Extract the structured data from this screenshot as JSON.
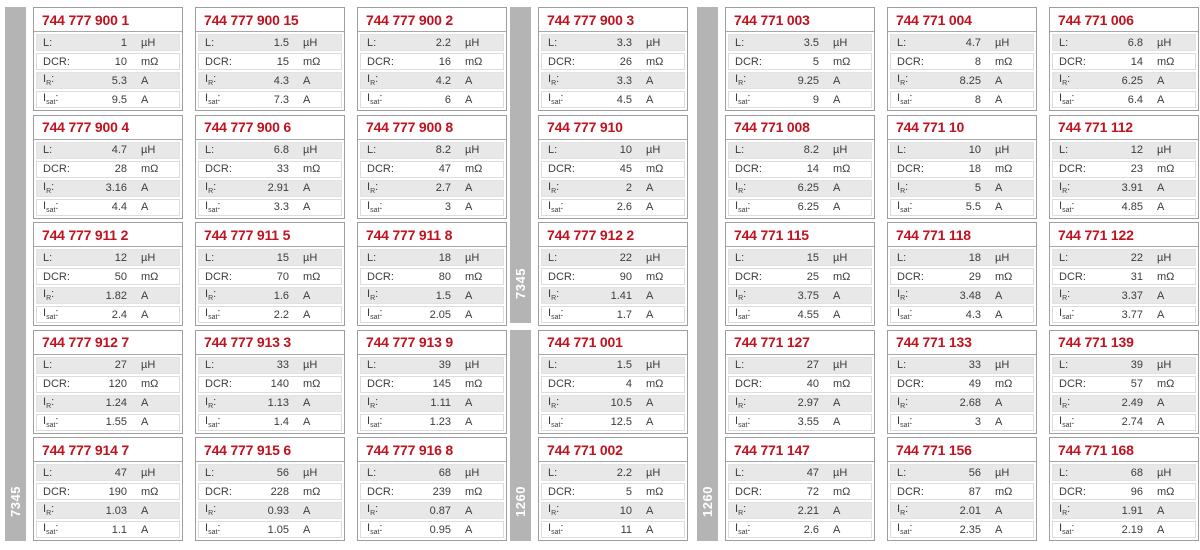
{
  "labels": {
    "l": "L:",
    "dcr": "DCR:",
    "i_base": "I",
    "r_sub": "R",
    "sat_sub": "sat",
    "colon": ":"
  },
  "units": {
    "l": "µH",
    "dcr": "mΩ",
    "ir": "A",
    "isat": "A"
  },
  "colors": {
    "accent_red": "#c1121f",
    "sidebar_gray": "#b4b4b4",
    "row_gray": "#e8e8e8",
    "border_gray": "#9e9e9e"
  },
  "groups": [
    {
      "name": "left-block",
      "columns": 3,
      "sidebar": [
        {
          "label": "7345",
          "rows": 5
        }
      ],
      "cards": [
        {
          "title": "744 777 900 1",
          "l": "1",
          "dcr": "10",
          "ir": "5.3",
          "isat": "9.5"
        },
        {
          "title": "744 777 900 15",
          "l": "1.5",
          "dcr": "15",
          "ir": "4.3",
          "isat": "7.3"
        },
        {
          "title": "744 777 900 2",
          "l": "2.2",
          "dcr": "16",
          "ir": "4.2",
          "isat": "6"
        },
        {
          "title": "744 777 900 4",
          "l": "4.7",
          "dcr": "28",
          "ir": "3.16",
          "isat": "4.4"
        },
        {
          "title": "744 777 900 6",
          "l": "6.8",
          "dcr": "33",
          "ir": "2.91",
          "isat": "3.3"
        },
        {
          "title": "744 777 900 8",
          "l": "8.2",
          "dcr": "47",
          "ir": "2.7",
          "isat": "3"
        },
        {
          "title": "744 777 911 2",
          "l": "12",
          "dcr": "50",
          "ir": "1.82",
          "isat": "2.4"
        },
        {
          "title": "744 777 911 5",
          "l": "15",
          "dcr": "70",
          "ir": "1.6",
          "isat": "2.2"
        },
        {
          "title": "744 777 911 8",
          "l": "18",
          "dcr": "80",
          "ir": "1.5",
          "isat": "2.05"
        },
        {
          "title": "744 777 912 7",
          "l": "27",
          "dcr": "120",
          "ir": "1.24",
          "isat": "1.55"
        },
        {
          "title": "744 777 913 3",
          "l": "33",
          "dcr": "140",
          "ir": "1.13",
          "isat": "1.4"
        },
        {
          "title": "744 777 913 9",
          "l": "39",
          "dcr": "145",
          "ir": "1.11",
          "isat": "1.23"
        },
        {
          "title": "744 777 914 7",
          "l": "47",
          "dcr": "190",
          "ir": "1.03",
          "isat": "1.1"
        },
        {
          "title": "744 777 915 6",
          "l": "56",
          "dcr": "228",
          "ir": "0.93",
          "isat": "1.05"
        },
        {
          "title": "744 777 916 8",
          "l": "68",
          "dcr": "239",
          "ir": "0.87",
          "isat": "0.95"
        }
      ]
    },
    {
      "name": "middle-block",
      "columns": 1,
      "sidebar": [
        {
          "label": "7345",
          "rows": 3
        },
        {
          "label": "1260",
          "rows": 2
        }
      ],
      "cards": [
        {
          "title": "744 777 900 3",
          "l": "3.3",
          "dcr": "26",
          "ir": "3.3",
          "isat": "4.5"
        },
        {
          "title": "744 777 910",
          "l": "10",
          "dcr": "45",
          "ir": "2",
          "isat": "2.6"
        },
        {
          "title": "744 777 912 2",
          "l": "22",
          "dcr": "90",
          "ir": "1.41",
          "isat": "1.7"
        },
        {
          "title": "744 771 001",
          "l": "1.5",
          "dcr": "4",
          "ir": "10.5",
          "isat": "12.5"
        },
        {
          "title": "744 771 002",
          "l": "2.2",
          "dcr": "5",
          "ir": "10",
          "isat": "11"
        }
      ]
    },
    {
      "name": "right-block",
      "columns": 3,
      "sidebar": [
        {
          "label": "1260",
          "rows": 5
        }
      ],
      "cards": [
        {
          "title": "744 771 003",
          "l": "3.5",
          "dcr": "5",
          "ir": "9.25",
          "isat": "9"
        },
        {
          "title": "744 771 004",
          "l": "4.7",
          "dcr": "8",
          "ir": "8.25",
          "isat": "8"
        },
        {
          "title": "744 771 006",
          "l": "6.8",
          "dcr": "14",
          "ir": "6.25",
          "isat": "6.4"
        },
        {
          "title": "744 771 008",
          "l": "8.2",
          "dcr": "14",
          "ir": "6.25",
          "isat": "6.25"
        },
        {
          "title": "744 771 10",
          "l": "10",
          "dcr": "18",
          "ir": "5",
          "isat": "5.5"
        },
        {
          "title": "744 771 112",
          "l": "12",
          "dcr": "23",
          "ir": "3.91",
          "isat": "4.85"
        },
        {
          "title": "744 771 115",
          "l": "15",
          "dcr": "25",
          "ir": "3.75",
          "isat": "4.55"
        },
        {
          "title": "744 771 118",
          "l": "18",
          "dcr": "29",
          "ir": "3.48",
          "isat": "4.3"
        },
        {
          "title": "744 771 122",
          "l": "22",
          "dcr": "31",
          "ir": "3.37",
          "isat": "3.77"
        },
        {
          "title": "744 771 127",
          "l": "27",
          "dcr": "40",
          "ir": "2.97",
          "isat": "3.55"
        },
        {
          "title": "744 771 133",
          "l": "33",
          "dcr": "49",
          "ir": "2.68",
          "isat": "3"
        },
        {
          "title": "744 771 139",
          "l": "39",
          "dcr": "57",
          "ir": "2.49",
          "isat": "2.74"
        },
        {
          "title": "744 771 147",
          "l": "47",
          "dcr": "72",
          "ir": "2.21",
          "isat": "2.6"
        },
        {
          "title": "744 771 156",
          "l": "56",
          "dcr": "87",
          "ir": "2.01",
          "isat": "2.35"
        },
        {
          "title": "744 771 168",
          "l": "68",
          "dcr": "96",
          "ir": "1.91",
          "isat": "2.19"
        }
      ]
    }
  ]
}
